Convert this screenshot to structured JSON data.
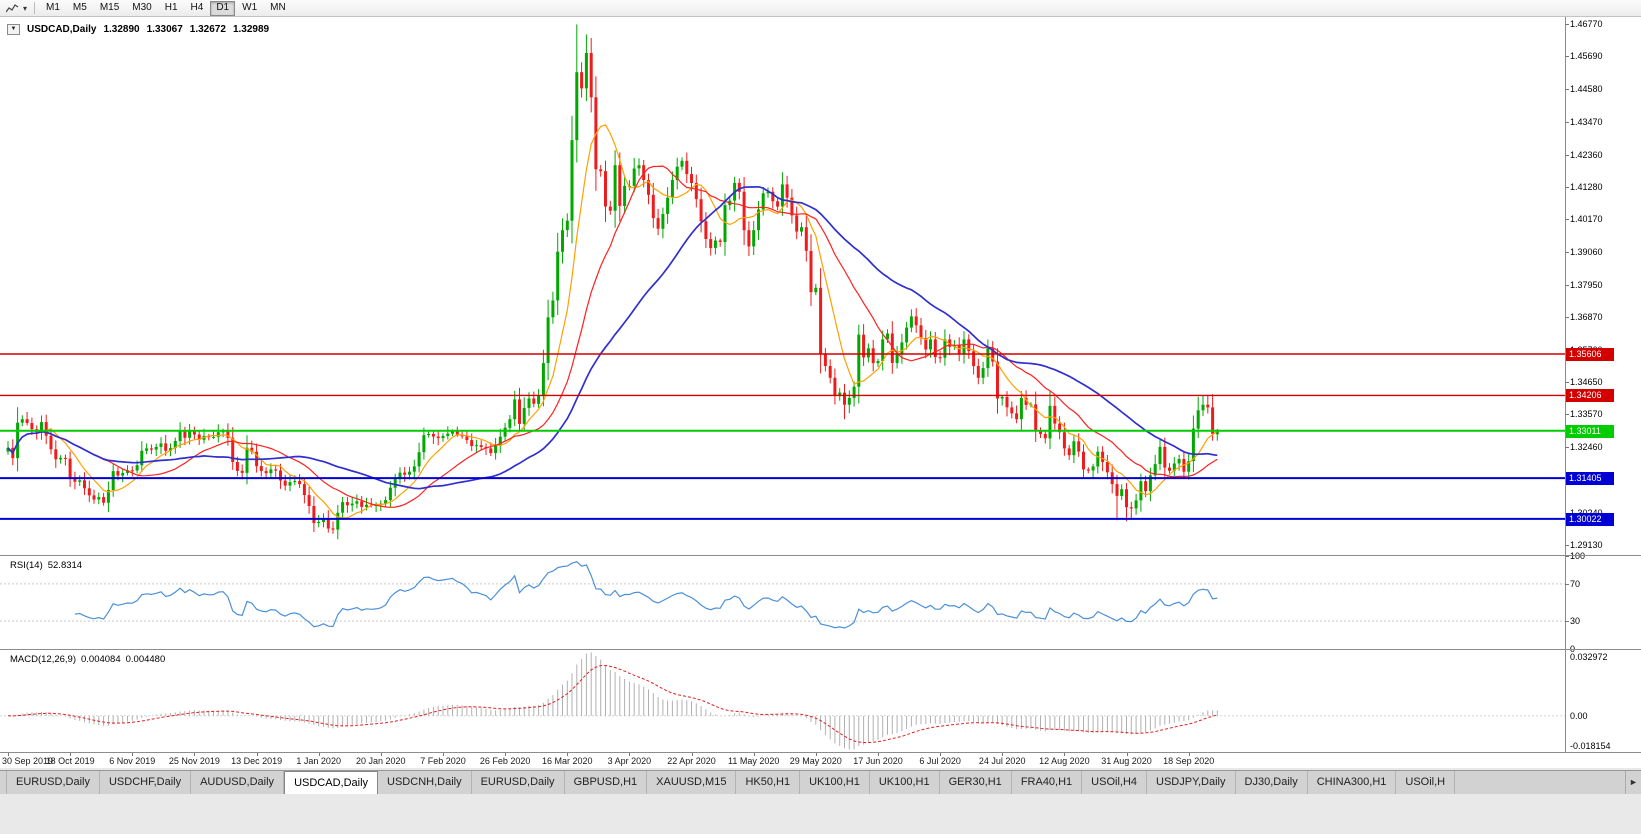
{
  "toolbar": {
    "timeframes": [
      "M1",
      "M5",
      "M15",
      "M30",
      "H1",
      "H4",
      "D1",
      "W1",
      "MN"
    ],
    "active": "D1"
  },
  "chart_header": {
    "expand_icon": "▼",
    "symbol_period": "USDCAD,Daily",
    "open": "1.32890",
    "high": "1.33067",
    "low": "1.32672",
    "close": "1.32989"
  },
  "price_axis": {
    "labels": [
      "1.46770",
      "1.45690",
      "1.44580",
      "1.43470",
      "1.42360",
      "1.41280",
      "1.40170",
      "1.39060",
      "1.37950",
      "1.36870",
      "1.35760",
      "1.34650",
      "1.33570",
      "1.32460",
      "1.31350",
      "1.30240",
      "1.29130"
    ]
  },
  "hlines": [
    {
      "label": "1.35606",
      "value": 1.35606,
      "color": "#d40000",
      "width": 1.4,
      "role": "resistance"
    },
    {
      "label": "1.34206",
      "value": 1.34206,
      "color": "#d40000",
      "width": 1.4,
      "role": "resistance"
    },
    {
      "label": "1.33011",
      "value": 1.33011,
      "color": "#00cc00",
      "width": 2,
      "role": "current_price"
    },
    {
      "label": "1.31405",
      "value": 1.31405,
      "color": "#0000d4",
      "width": 2,
      "role": "support"
    },
    {
      "label": "1.30022",
      "value": 1.30022,
      "color": "#0000d4",
      "width": 2,
      "role": "support"
    }
  ],
  "rsi": {
    "label": "RSI(14)",
    "value": "52.8314",
    "levels": [
      "100",
      "70",
      "30",
      "0"
    ]
  },
  "macd": {
    "label": "MACD(12,26,9)",
    "value_main": "0.004084",
    "value_signal": "0.004480",
    "axis_labels": [
      "0.032972",
      "0.00",
      "-0.018154"
    ],
    "scale_max": 0.032972,
    "scale_min": -0.018154
  },
  "time_axis": {
    "labels": [
      "30 Sep 2019",
      "18 Oct 2019",
      "6 Nov 2019",
      "25 Nov 2019",
      "13 Dec 2019",
      "1 Jan 2020",
      "20 Jan 2020",
      "7 Feb 2020",
      "26 Feb 2020",
      "16 Mar 2020",
      "3 Apr 2020",
      "22 Apr 2020",
      "11 May 2020",
      "29 May 2020",
      "17 Jun 2020",
      "6 Jul 2020",
      "24 Jul 2020",
      "12 Aug 2020",
      "31 Aug 2020",
      "18 Sep 2020"
    ]
  },
  "tabs": {
    "items": [
      "EURUSD,Daily",
      "USDCHF,Daily",
      "AUDUSD,Daily",
      "USDCAD,Daily",
      "USDCNH,Daily",
      "EURUSD,Daily",
      "GBPUSD,H1",
      "XAUUSD,M15",
      "HK50,H1",
      "UK100,H1",
      "UK100,H1",
      "GER30,H1",
      "FRA40,H1",
      "USOil,H4",
      "USDJPY,Daily",
      "DJ30,Daily",
      "CHINA300,H1",
      "USOil,H"
    ],
    "active_index": 3,
    "scroll_right": "►"
  },
  "colors": {
    "candle_up": "#00a800",
    "candle_down": "#ee1c1c",
    "ma_fast": "#ffa000",
    "ma_mid": "#ff2020",
    "ma_slow": "#2f2fd0",
    "rsi_line": "#4a90d9",
    "macd_hist": "#b0b0b0",
    "macd_signal": "#e02020",
    "background": "#ffffff"
  },
  "chart_data": {
    "type": "candlestick",
    "symbol": "USDCAD",
    "timeframe": "Daily",
    "title": "USDCAD,Daily",
    "last_ohlc": {
      "open": 1.3289,
      "high": 1.33067,
      "low": 1.32672,
      "close": 1.32989
    },
    "y_range": [
      1.288,
      1.4702
    ],
    "first_open": 1.323,
    "rsi_period": 14,
    "macd_periods": [
      12,
      26,
      9
    ],
    "ma": {
      "fast_period": 8,
      "mid_period": 20,
      "slow_period": 40
    },
    "closes": [
      1.3243,
      1.3208,
      1.3328,
      1.334,
      1.3327,
      1.3306,
      1.3296,
      1.333,
      1.3284,
      1.3238,
      1.3204,
      1.3209,
      1.3206,
      1.3139,
      1.3128,
      1.3133,
      1.3106,
      1.3082,
      1.3068,
      1.3076,
      1.3057,
      1.31,
      1.3164,
      1.3149,
      1.3158,
      1.3167,
      1.3166,
      1.3184,
      1.3233,
      1.3241,
      1.3237,
      1.3246,
      1.3258,
      1.3233,
      1.3242,
      1.3266,
      1.3299,
      1.3277,
      1.3301,
      1.3288,
      1.327,
      1.3283,
      1.3279,
      1.328,
      1.3296,
      1.3299,
      1.3277,
      1.3195,
      1.3165,
      1.3158,
      1.3243,
      1.323,
      1.3181,
      1.3164,
      1.3157,
      1.317,
      1.3166,
      1.3132,
      1.3115,
      1.3127,
      1.3131,
      1.312,
      1.3083,
      1.3046,
      1.2988,
      1.2992,
      1.3001,
      1.297,
      1.2966,
      1.3023,
      1.3059,
      1.3048,
      1.3054,
      1.3062,
      1.3043,
      1.305,
      1.3047,
      1.3049,
      1.3054,
      1.3066,
      1.3108,
      1.3137,
      1.3159,
      1.3152,
      1.3162,
      1.318,
      1.3228,
      1.3286,
      1.329,
      1.3281,
      1.3276,
      1.3283,
      1.3291,
      1.3299,
      1.3288,
      1.3282,
      1.3269,
      1.3249,
      1.3252,
      1.3246,
      1.3241,
      1.3225,
      1.325,
      1.3281,
      1.3311,
      1.334,
      1.3407,
      1.3324,
      1.3378,
      1.341,
      1.3392,
      1.3422,
      1.353,
      1.3685,
      1.3742,
      1.3907,
      1.398,
      1.4012,
      1.4285,
      1.4515,
      1.446,
      1.458,
      1.443,
      1.4186,
      1.418,
      1.406,
      1.4046,
      1.42,
      1.4062,
      1.413,
      1.413,
      1.4189,
      1.42,
      1.415,
      1.41,
      1.4021,
      1.3985,
      1.4035,
      1.409,
      1.415,
      1.4195,
      1.4215,
      1.417,
      1.414,
      1.4085,
      1.401,
      1.395,
      1.392,
      1.3945,
      1.394,
      1.4065,
      1.408,
      1.414,
      1.411,
      1.398,
      1.3925,
      1.398,
      1.405,
      1.4105,
      1.411,
      1.4078,
      1.406,
      1.4135,
      1.409,
      1.403,
      1.3975,
      1.399,
      1.391,
      1.377,
      1.3785,
      1.356,
      1.352,
      1.348,
      1.342,
      1.343,
      1.3389,
      1.3412,
      1.345,
      1.3626,
      1.3549,
      1.358,
      1.353,
      1.3537,
      1.361,
      1.363,
      1.353,
      1.356,
      1.36,
      1.365,
      1.3688,
      1.3658,
      1.3615,
      1.3576,
      1.361,
      1.355,
      1.3548,
      1.361,
      1.3585,
      1.359,
      1.356,
      1.361,
      1.357,
      1.352,
      1.348,
      1.3513,
      1.358,
      1.3535,
      1.341,
      1.3415,
      1.338,
      1.336,
      1.334,
      1.3412,
      1.3388,
      1.339,
      1.3302,
      1.329,
      1.3275,
      1.3385,
      1.3325,
      1.3296,
      1.3241,
      1.3218,
      1.3265,
      1.323,
      1.317,
      1.3166,
      1.318,
      1.323,
      1.3195,
      1.316,
      1.312,
      1.308,
      1.3103,
      1.3042,
      1.3038,
      1.3065,
      1.313,
      1.3096,
      1.315,
      1.3188,
      1.3246,
      1.3176,
      1.3165,
      1.319,
      1.3205,
      1.3162,
      1.3198,
      1.3308,
      1.337,
      1.3389,
      1.338,
      1.329,
      1.3299
    ],
    "wick_overrides": {
      "64": {
        "l": 1.2958
      },
      "68": {
        "l": 1.2952
      },
      "119": {
        "h": 1.4677
      },
      "121": {
        "h": 1.4643
      },
      "175": {
        "l": 1.334
      },
      "178": {
        "h": 1.366
      },
      "189": {
        "h": 1.3712
      },
      "232": {
        "l": 1.2998
      },
      "234": {
        "l": 1.2994
      },
      "235": {
        "l": 1.2999
      },
      "249": {
        "h": 1.3416
      },
      "250": {
        "h": 1.3421
      },
      "251": {
        "h": 1.3419
      },
      "252": {
        "l": 1.3267
      },
      "253": {
        "o": 1.3289,
        "h": 1.3307,
        "l": 1.3267
      }
    }
  }
}
